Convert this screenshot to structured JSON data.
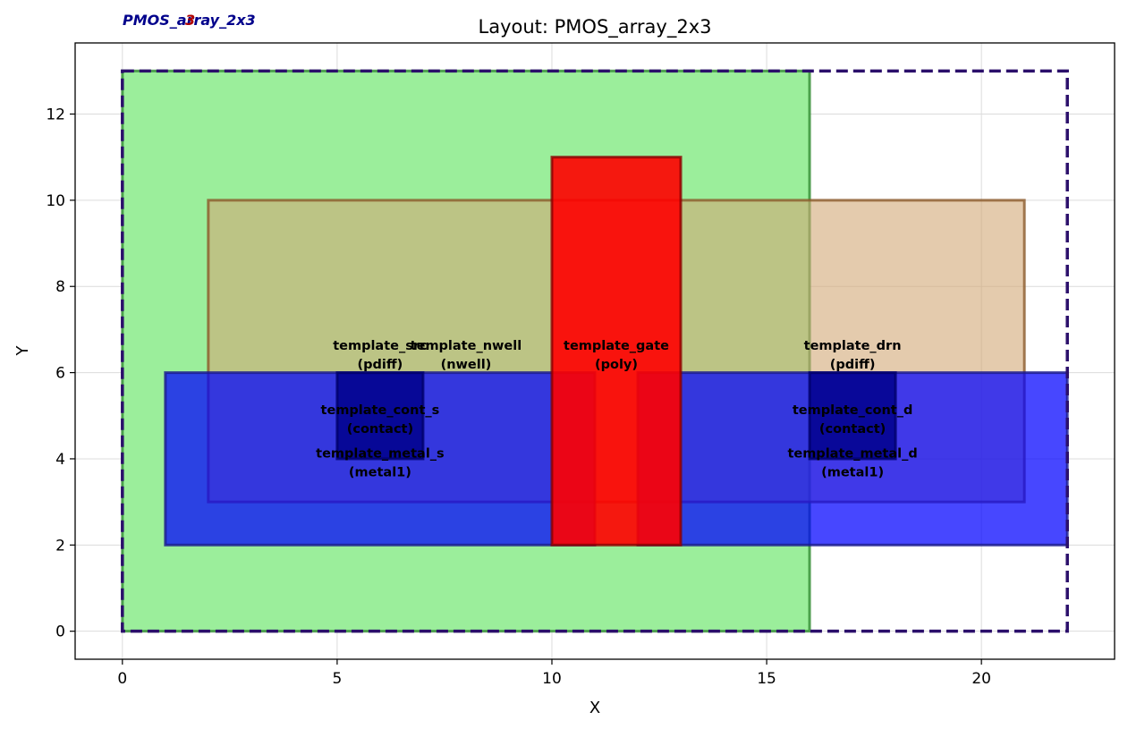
{
  "title": "Layout: PMOS_array_2x3",
  "corner_title": "PMOS_array_2x3",
  "corner_overlap": "3",
  "chart_data": {
    "type": "layout",
    "xlabel": "X",
    "ylabel": "Y",
    "xlim": [
      -1.1,
      23.1
    ],
    "ylim": [
      -0.65,
      13.65
    ],
    "xticks": [
      0,
      5,
      10,
      15,
      20
    ],
    "yticks": [
      0,
      2,
      4,
      6,
      8,
      10,
      12
    ],
    "grid": true,
    "boundary": {
      "x0": 0,
      "y0": 0,
      "x1": 22,
      "y1": 13,
      "color": "#2b0f6b"
    },
    "rects": [
      {
        "name": "template_nwell",
        "layer": "nwell",
        "x0": 0,
        "y0": 0,
        "x1": 16,
        "y1": 13,
        "fill": "#9bee9b",
        "stroke": "#2e8b2e",
        "labelled": false
      },
      {
        "name": "template_src",
        "layer": "pdiff",
        "x0": 2,
        "y0": 3,
        "x1": 21,
        "y1": 10,
        "fill": "#d2a877",
        "opacity": 0.6,
        "stroke": "#8b5a2b",
        "labelled": false
      },
      {
        "name": "template_metal_s",
        "layer": "metal1",
        "x0": 1,
        "y0": 2,
        "x1": 11,
        "y1": 6,
        "fill": "#0000ff",
        "opacity": 0.72,
        "stroke": "#1a1a8c",
        "labelled": false
      },
      {
        "name": "template_metal_d",
        "layer": "metal1",
        "x0": 12,
        "y0": 2,
        "x1": 22,
        "y1": 6,
        "fill": "#0000ff",
        "opacity": 0.72,
        "stroke": "#1a1a8c",
        "labelled": false
      },
      {
        "name": "template_cont_s",
        "layer": "contact",
        "x0": 5,
        "y0": 4,
        "x1": 7,
        "y1": 6,
        "fill": "#00008b",
        "opacity": 0.85,
        "stroke": "#00006a",
        "labelled": false
      },
      {
        "name": "template_cont_d",
        "layer": "contact",
        "x0": 16,
        "y0": 4,
        "x1": 18,
        "y1": 6,
        "fill": "#00008b",
        "opacity": 0.85,
        "stroke": "#00006a",
        "labelled": false
      },
      {
        "name": "template_gate",
        "layer": "poly",
        "x0": 10,
        "y0": 2,
        "x1": 13,
        "y1": 11,
        "fill": "#ff0000",
        "opacity": 0.9,
        "stroke": "#8b0000",
        "labelled": false
      }
    ],
    "annotations": [
      {
        "x": 6,
        "y": 6.45,
        "line1": "template_src",
        "line2": "(pdiff)"
      },
      {
        "x": 8,
        "y": 6.45,
        "line1": "template_nwell",
        "line2": "(nwell)"
      },
      {
        "x": 11.5,
        "y": 6.45,
        "line1": "template_gate",
        "line2": "(poly)"
      },
      {
        "x": 17,
        "y": 6.45,
        "line1": "template_drn",
        "line2": "(pdiff)"
      },
      {
        "x": 6,
        "y": 4.95,
        "line1": "template_cont_s",
        "line2": "(contact)"
      },
      {
        "x": 17,
        "y": 4.95,
        "line1": "template_cont_d",
        "line2": "(contact)"
      },
      {
        "x": 6,
        "y": 3.95,
        "line1": "template_metal_s",
        "line2": "(metal1)"
      },
      {
        "x": 17,
        "y": 3.95,
        "line1": "template_metal_d",
        "line2": "(metal1)"
      }
    ]
  }
}
